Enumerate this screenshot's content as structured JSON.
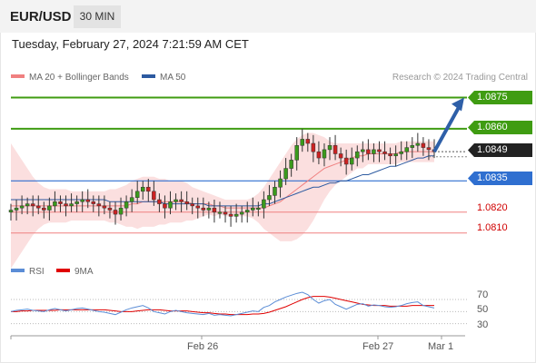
{
  "header": {
    "symbol": "EUR/USD",
    "timeframe_label": "30 MIN",
    "timestamp": "Tuesday, February 27, 2024 7:21:59 AM CET"
  },
  "legend": {
    "ma20_label": "MA 20 + Bollinger Bands",
    "ma20_color": "#f08080",
    "ma50_label": "MA 50",
    "ma50_color": "#2c5aa0",
    "credit": "Research © 2024 Trading Central"
  },
  "levels": {
    "target_2": "1.0875",
    "target_1": "1.0860",
    "current": "1.0849",
    "pivot": "1.0835",
    "support_1": "1.0820",
    "support_2": "1.0810"
  },
  "rsi_panel": {
    "rsi_label": "RSI",
    "rsi_color": "#5b8dd6",
    "ma_label": "9MA",
    "ma_color": "#e00000",
    "ticks": [
      "70",
      "50",
      "30"
    ]
  },
  "x_axis": {
    "labels": [
      "Feb 26",
      "Feb 27",
      "Mar 1"
    ]
  },
  "chart_data": {
    "type": "candlestick",
    "title": "EUR/USD",
    "ylim": [
      1.0799,
      1.088
    ],
    "close": [
      1.0821,
      1.0822,
      1.0823,
      1.0824,
      1.0823,
      1.0822,
      1.0821,
      1.0823,
      1.0825,
      1.0824,
      1.0823,
      1.0824,
      1.0825,
      1.0826,
      1.0825,
      1.0824,
      1.0823,
      1.0822,
      1.0821,
      1.0819,
      1.0822,
      1.0825,
      1.0827,
      1.083,
      1.0832,
      1.083,
      1.0826,
      1.0824,
      1.0822,
      1.0825,
      1.0826,
      1.0825,
      1.0824,
      1.0823,
      1.0822,
      1.0821,
      1.0822,
      1.082,
      1.082,
      1.0819,
      1.0818,
      1.0819,
      1.082,
      1.0821,
      1.0822,
      1.0822,
      1.0826,
      1.0828,
      1.0832,
      1.0836,
      1.0841,
      1.0845,
      1.0852,
      1.0855,
      1.0853,
      1.0849,
      1.0846,
      1.085,
      1.0852,
      1.0848,
      1.0846,
      1.0843,
      1.0846,
      1.0849,
      1.085,
      1.0848,
      1.085,
      1.0849,
      1.0848,
      1.0847,
      1.0848,
      1.0849,
      1.0851,
      1.0852,
      1.0853,
      1.0851,
      1.085,
      1.0849
    ],
    "ma50": [
      1.0826,
      1.0826,
      1.0826,
      1.0826,
      1.0826,
      1.0826,
      1.0826,
      1.0826,
      1.0826,
      1.0826,
      1.0826,
      1.0826,
      1.0826,
      1.0826,
      1.0826,
      1.0826,
      1.0826,
      1.0826,
      1.0825,
      1.0825,
      1.0825,
      1.0825,
      1.0825,
      1.0825,
      1.0825,
      1.0825,
      1.0825,
      1.0825,
      1.0824,
      1.0824,
      1.0824,
      1.0824,
      1.0824,
      1.0824,
      1.0824,
      1.0824,
      1.0823,
      1.0823,
      1.0823,
      1.0823,
      1.0823,
      1.0823,
      1.0823,
      1.0823,
      1.0823,
      1.0823,
      1.0824,
      1.0824,
      1.0825,
      1.0826,
      1.0827,
      1.0828,
      1.0829,
      1.083,
      1.0831,
      1.0832,
      1.0832,
      1.0833,
      1.0834,
      1.0834,
      1.0835,
      1.0835,
      1.0836,
      1.0837,
      1.0838,
      1.0838,
      1.0839,
      1.084,
      1.0841,
      1.0842,
      1.0842,
      1.0843,
      1.0844,
      1.0845,
      1.0846,
      1.0846,
      1.0847,
      1.0847
    ],
    "ma20": [
      1.0823,
      1.0823,
      1.0823,
      1.0823,
      1.0823,
      1.0823,
      1.0823,
      1.0823,
      1.0823,
      1.0823,
      1.0823,
      1.0823,
      1.0823,
      1.0823,
      1.0823,
      1.0823,
      1.0823,
      1.0823,
      1.0823,
      1.0823,
      1.0823,
      1.0823,
      1.0824,
      1.0824,
      1.0825,
      1.0825,
      1.0825,
      1.0825,
      1.0825,
      1.0825,
      1.0825,
      1.0825,
      1.0825,
      1.0824,
      1.0824,
      1.0824,
      1.0824,
      1.0823,
      1.0823,
      1.0822,
      1.0822,
      1.0822,
      1.0822,
      1.0822,
      1.0822,
      1.0822,
      1.0822,
      1.0823,
      1.0824,
      1.0825,
      1.0827,
      1.0829,
      1.0831,
      1.0833,
      1.0835,
      1.0837,
      1.0839,
      1.0841,
      1.0842,
      1.0843,
      1.0844,
      1.0845,
      1.0846,
      1.0847,
      1.0847,
      1.0848,
      1.0848,
      1.0848,
      1.0848,
      1.0848,
      1.0848,
      1.0849,
      1.0849,
      1.0849,
      1.0849,
      1.0849,
      1.0849,
      1.0849
    ],
    "band_width": [
      0.003,
      0.0026,
      0.0022,
      0.0018,
      0.0014,
      0.0011,
      0.0009,
      0.0008,
      0.0008,
      0.0008,
      0.0008,
      0.0007,
      0.0007,
      0.0007,
      0.0007,
      0.0007,
      0.0007,
      0.0007,
      0.0008,
      0.0008,
      0.0009,
      0.001,
      0.0011,
      0.0012,
      0.0012,
      0.0012,
      0.0012,
      0.0011,
      0.0011,
      0.001,
      0.001,
      0.001,
      0.0009,
      0.0008,
      0.0007,
      0.0006,
      0.0005,
      0.0005,
      0.0004,
      0.0004,
      0.0004,
      0.0004,
      0.0004,
      0.0004,
      0.0005,
      0.0007,
      0.001,
      0.0013,
      0.0016,
      0.0019,
      0.0021,
      0.0023,
      0.0024,
      0.0024,
      0.0023,
      0.0021,
      0.0018,
      0.0015,
      0.0012,
      0.001,
      0.0009,
      0.0008,
      0.0007,
      0.0006,
      0.0006,
      0.0005,
      0.0005,
      0.0005,
      0.0005,
      0.0005,
      0.0005,
      0.0005,
      0.0005,
      0.0005,
      0.0005,
      0.0005,
      0.0005,
      0.0005
    ],
    "rsi": [
      50,
      52,
      53,
      54,
      52,
      51,
      50,
      53,
      55,
      53,
      51,
      53,
      55,
      56,
      54,
      52,
      50,
      49,
      47,
      45,
      49,
      53,
      56,
      58,
      60,
      56,
      50,
      48,
      46,
      50,
      52,
      50,
      48,
      47,
      46,
      45,
      47,
      44,
      45,
      44,
      43,
      45,
      47,
      49,
      51,
      50,
      57,
      60,
      66,
      70,
      74,
      77,
      80,
      82,
      78,
      70,
      64,
      68,
      70,
      62,
      58,
      54,
      58,
      62,
      63,
      59,
      61,
      60,
      58,
      57,
      58,
      60,
      63,
      65,
      66,
      60,
      58,
      56
    ],
    "rsi_ma": [
      50,
      50,
      51,
      51,
      52,
      52,
      52,
      52,
      52,
      53,
      53,
      53,
      53,
      53,
      53,
      53,
      53,
      53,
      52,
      51,
      50,
      50,
      50,
      51,
      52,
      53,
      53,
      53,
      52,
      51,
      51,
      51,
      51,
      50,
      49,
      48,
      48,
      47,
      46,
      46,
      45,
      45,
      45,
      45,
      46,
      46,
      47,
      49,
      52,
      55,
      58,
      62,
      66,
      70,
      73,
      75,
      75,
      75,
      74,
      72,
      70,
      68,
      66,
      64,
      62,
      61,
      60,
      60,
      60,
      59,
      59,
      59,
      59,
      60,
      60,
      60,
      60,
      60
    ],
    "rsi_ylim": [
      10,
      100
    ],
    "x_labels": [
      "Feb 26",
      "Feb 27",
      "Mar 1"
    ],
    "projection": {
      "from": 1.0849,
      "to": 1.0875
    }
  }
}
